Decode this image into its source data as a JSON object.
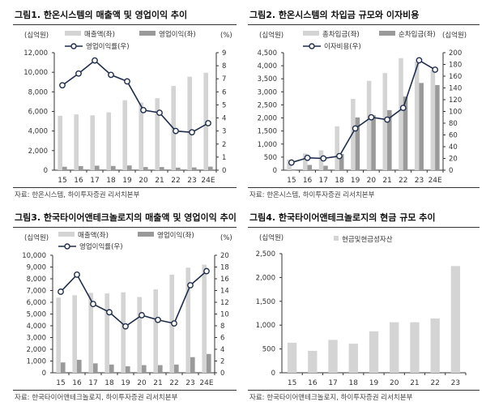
{
  "colors": {
    "sales_bar": "#d4d4d4",
    "op_bar": "#9a9a9a",
    "line": "#1f2d4d",
    "marker_fill": "#ffffff"
  },
  "chart_data": [
    {
      "type": "bar+line",
      "title": "그림1.  한온시스템의 매출액 및 영업이익 추이",
      "source": "자료: 한온시스템, 하이투자증권 리서치본부",
      "ylabel_left": "(십억원)",
      "ylabel_right": "(%)",
      "categories": [
        "15",
        "16",
        "17",
        "18",
        "19",
        "20",
        "21",
        "22",
        "23",
        "24E"
      ],
      "ylim_left": [
        0,
        12000
      ],
      "yticks_left": [
        "0",
        "2,000",
        "4,000",
        "6,000",
        "8,000",
        "10,000",
        "12,000"
      ],
      "ylim_right": [
        0,
        9
      ],
      "yticks_right": [
        "0",
        "1",
        "2",
        "3",
        "4",
        "5",
        "6",
        "7",
        "8",
        "9"
      ],
      "bars": [
        {
          "name": "매출액(좌)",
          "values": [
            5550,
            5700,
            5600,
            5900,
            7150,
            6900,
            7350,
            8600,
            9550,
            9950
          ]
        },
        {
          "name": "영업이익(좌)",
          "values": [
            350,
            420,
            460,
            430,
            480,
            320,
            320,
            260,
            280,
            360
          ]
        }
      ],
      "line": {
        "name": "영업이익률(우)",
        "values": [
          6.5,
          7.4,
          8.4,
          7.3,
          6.8,
          4.6,
          4.4,
          3.0,
          2.9,
          3.6
        ]
      }
    },
    {
      "type": "bar+line",
      "title": "그림2.  한온시스템의 차입금 규모와 이자비용",
      "source": "자료: 한온시스템, 하이투자증권 리서치본부",
      "ylabel_left": "(십억원)",
      "ylabel_right": "(십억원)",
      "categories": [
        "15",
        "16",
        "17",
        "18",
        "19",
        "20",
        "21",
        "22",
        "23",
        "24E"
      ],
      "ylim_left": [
        0,
        4500
      ],
      "yticks_left": [
        "0",
        "500",
        "1,000",
        "1,500",
        "2,000",
        "2,500",
        "3,000",
        "3,500",
        "4,000",
        "4,500"
      ],
      "ylim_right": [
        0,
        200
      ],
      "yticks_right": [
        "0",
        "20",
        "40",
        "60",
        "80",
        "100",
        "120",
        "140",
        "160",
        "180",
        "200"
      ],
      "bars": [
        {
          "name": "총차입금(좌)",
          "values": [
            400,
            640,
            760,
            1680,
            2730,
            3420,
            3720,
            4290,
            4160,
            3830
          ]
        },
        {
          "name": "순차입금(좌)",
          "values": [
            -20,
            200,
            170,
            620,
            2020,
            2100,
            2300,
            2820,
            3340,
            3260
          ]
        }
      ],
      "line": {
        "name": "이자비용(우)",
        "values": [
          13,
          21,
          20,
          24,
          71,
          90,
          86,
          106,
          187,
          171
        ]
      }
    },
    {
      "type": "bar+line",
      "title": "그림3.  한국타이어앤테크놀로지의 매출액 및 영업이익 추이",
      "source": "자료: 한국타이어앤테크놀로지, 하이투자증권 리서치본부",
      "ylabel_left": "(십억원)",
      "ylabel_right": "(%)",
      "categories": [
        "15",
        "16",
        "17",
        "18",
        "19",
        "20",
        "21",
        "22",
        "23",
        "24E"
      ],
      "ylim_left": [
        0,
        10000
      ],
      "yticks_left": [
        "0",
        "1,000",
        "2,000",
        "3,000",
        "4,000",
        "5,000",
        "6,000",
        "7,000",
        "8,000",
        "9,000",
        "10,000"
      ],
      "ylim_right": [
        0,
        20
      ],
      "yticks_right": [
        "0",
        "2",
        "4",
        "6",
        "8",
        "10",
        "12",
        "14",
        "16",
        "18",
        "20"
      ],
      "bars": [
        {
          "name": "매출액(좌)",
          "values": [
            6400,
            6600,
            6800,
            6750,
            6850,
            6450,
            7100,
            8350,
            8950,
            9200
          ]
        },
        {
          "name": "영업이익(좌)",
          "values": [
            880,
            1100,
            800,
            700,
            550,
            650,
            650,
            700,
            1330,
            1600
          ]
        }
      ],
      "line": {
        "name": "영업이익률(우)",
        "values": [
          13.8,
          16.7,
          11.7,
          10.3,
          7.9,
          9.8,
          9.0,
          8.4,
          14.9,
          17.3
        ]
      }
    },
    {
      "type": "bar",
      "title": "그림4.  한국타이어앤테크놀로지의 현금 규모 추이",
      "source": "자료: 한국타이어앤테크놀로지, 하이투자증권 리서치본부",
      "ylabel_left": "(십억원)",
      "categories": [
        "15",
        "16",
        "17",
        "18",
        "19",
        "20",
        "21",
        "22",
        "23"
      ],
      "ylim_left": [
        0,
        2500
      ],
      "yticks_left": [
        "0",
        "500",
        "1,000",
        "1,500",
        "2,000",
        "2,500"
      ],
      "bars": [
        {
          "name": "현금및현금성자산",
          "values": [
            630,
            460,
            690,
            610,
            870,
            1060,
            1060,
            1140,
            2240
          ]
        }
      ]
    }
  ]
}
